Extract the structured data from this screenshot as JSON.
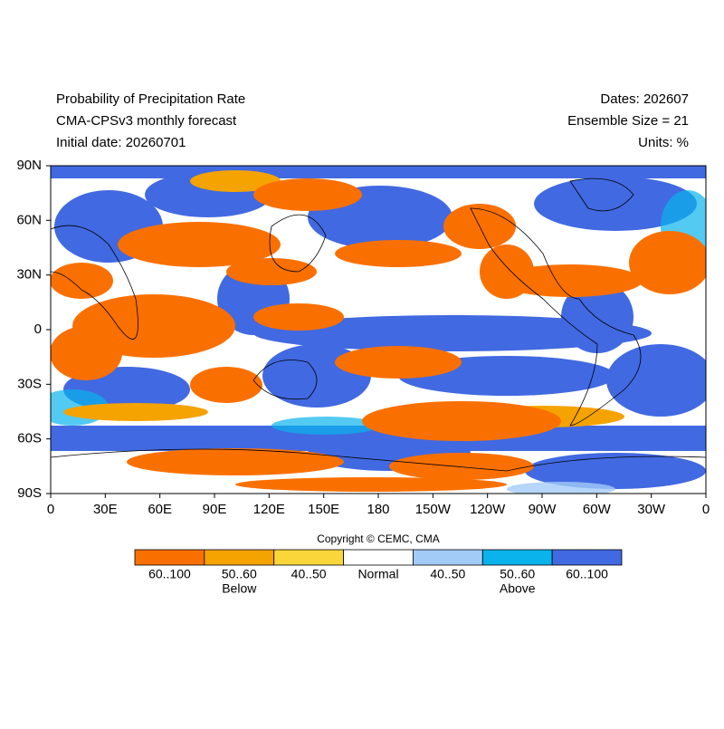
{
  "header": {
    "left": [
      "Probability of Precipitation Rate",
      "CMA-CPSv3 monthly forecast",
      "Initial date: 20260701"
    ],
    "right": [
      "Dates: 202607",
      "Ensemble Size = 21",
      "Units: %"
    ]
  },
  "map": {
    "lat_labels": [
      "90N",
      "60N",
      "30N",
      "0",
      "30S",
      "60S",
      "90S"
    ],
    "lon_labels": [
      "0",
      "30E",
      "60E",
      "90E",
      "120E",
      "150E",
      "180",
      "150W",
      "120W",
      "90W",
      "60W",
      "30W",
      "0"
    ]
  },
  "copyright": "Copyright © CEMC, CMA",
  "legend": {
    "items": [
      {
        "label": "60..100",
        "color": "#fa7000"
      },
      {
        "label": "50..60",
        "color": "#f5a300"
      },
      {
        "label": "40..50",
        "color": "#fbd63a"
      },
      {
        "label": "Normal",
        "color": "#ffffff"
      },
      {
        "label": "40..50",
        "color": "#a3cbf7"
      },
      {
        "label": "50..60",
        "color": "#0ab3ec"
      },
      {
        "label": "60..100",
        "color": "#4169e1"
      }
    ],
    "groups": [
      "Below",
      "Above"
    ]
  }
}
